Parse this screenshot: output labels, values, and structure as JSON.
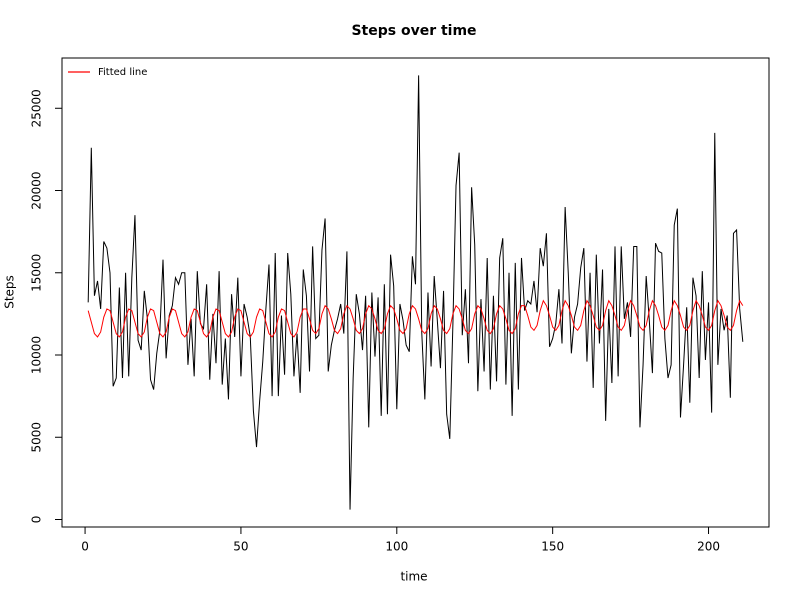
{
  "chart_data": {
    "type": "line",
    "title": "Steps over time",
    "x_label": "time",
    "y_label": "Steps",
    "x": [
      1,
      2,
      3,
      4,
      5,
      6,
      7,
      8,
      9,
      10,
      11,
      12,
      13,
      14,
      15,
      16,
      17,
      18,
      19,
      20,
      21,
      22,
      23,
      24,
      25,
      26,
      27,
      28,
      29,
      30,
      31,
      32,
      33,
      34,
      35,
      36,
      37,
      38,
      39,
      40,
      41,
      42,
      43,
      44,
      45,
      46,
      47,
      48,
      49,
      50,
      51,
      52,
      53,
      54,
      55,
      56,
      57,
      58,
      59,
      60,
      61,
      62,
      63,
      64,
      65,
      66,
      67,
      68,
      69,
      70,
      71,
      72,
      73,
      74,
      75,
      76,
      77,
      78,
      79,
      80,
      81,
      82,
      83,
      84,
      85,
      86,
      87,
      88,
      89,
      90,
      91,
      92,
      93,
      94,
      95,
      96,
      97,
      98,
      99,
      100,
      101,
      102,
      103,
      104,
      105,
      106,
      107,
      108,
      109,
      110,
      111,
      112,
      113,
      114,
      115,
      116,
      117,
      118,
      119,
      120,
      121,
      122,
      123,
      124,
      125,
      126,
      127,
      128,
      129,
      130,
      131,
      132,
      133,
      134,
      135,
      136,
      137,
      138,
      139,
      140,
      141,
      142,
      143,
      144,
      145,
      146,
      147,
      148,
      149,
      150,
      151,
      152,
      153,
      154,
      155,
      156,
      157,
      158,
      159,
      160,
      161,
      162,
      163,
      164,
      165,
      166,
      167,
      168,
      169,
      170,
      171,
      172,
      173,
      174,
      175,
      176,
      177,
      178,
      179,
      180,
      181,
      182,
      183,
      184,
      185,
      186,
      187,
      188,
      189,
      190,
      191,
      192,
      193,
      194,
      195,
      196,
      197,
      198,
      199,
      200,
      201,
      202,
      203,
      204,
      205,
      206,
      207,
      208,
      209,
      210,
      211
    ],
    "series": [
      {
        "color": "#000000",
        "values": [
          13200,
          22600,
          13600,
          14500,
          12800,
          16900,
          16500,
          15000,
          8100,
          8600,
          14100,
          8600,
          15000,
          8700,
          14700,
          18500,
          10900,
          10300,
          13900,
          12200,
          8500,
          7900,
          10100,
          11500,
          15800,
          9800,
          12400,
          13000,
          14700,
          14300,
          15000,
          15000,
          9400,
          12200,
          8700,
          15100,
          11900,
          11600,
          14300,
          8500,
          12500,
          9500,
          15100,
          8200,
          11000,
          7300,
          13700,
          11100,
          14700,
          8700,
          13100,
          12300,
          11100,
          6600,
          4400,
          7200,
          9600,
          12800,
          15500,
          7500,
          16200,
          7500,
          12400,
          8800,
          16200,
          13700,
          8700,
          11300,
          7700,
          15200,
          13600,
          9000,
          16600,
          11000,
          11200,
          16400,
          18300,
          9000,
          10600,
          11500,
          12200,
          13100,
          11300,
          16300,
          600,
          8600,
          13700,
          12500,
          10300,
          13600,
          5600,
          13800,
          9900,
          13500,
          6300,
          14300,
          6400,
          16100,
          14200,
          6700,
          13100,
          12100,
          10600,
          10200,
          16000,
          14300,
          27000,
          11400,
          7300,
          13800,
          9300,
          14800,
          12100,
          9200,
          13900,
          6400,
          4900,
          11900,
          20300,
          22300,
          11200,
          14000,
          9500,
          20200,
          16700,
          7800,
          13400,
          9000,
          15900,
          7900,
          13600,
          8400,
          15900,
          17100,
          8200,
          15000,
          6300,
          15600,
          7900,
          15900,
          12700,
          13300,
          13100,
          14500,
          12600,
          16500,
          15400,
          17400,
          10500,
          11000,
          11900,
          14000,
          10700,
          19000,
          15000,
          10100,
          12300,
          13100,
          15300,
          16500,
          9600,
          15000,
          8000,
          16100,
          10700,
          15200,
          6000,
          12800,
          8300,
          16600,
          8700,
          16600,
          12200,
          13200,
          11100,
          16600,
          16600,
          5600,
          9400,
          14800,
          12100,
          8900,
          16800,
          16300,
          16200,
          11000,
          8600,
          9400,
          17900,
          18900,
          6200,
          9400,
          12900,
          7100,
          14700,
          13600,
          8600,
          15100,
          9700,
          13200,
          6500,
          23500,
          9400,
          12800,
          11500,
          12400,
          7400,
          17400,
          17600,
          12800,
          10800
        ]
      },
      {
        "name": "Fitted line",
        "color": "#ff0000",
        "values": [
          12700,
          12000,
          11300,
          11100,
          11400,
          12300,
          12800,
          12700,
          12000,
          11300,
          11100,
          11400,
          12300,
          12800,
          12700,
          12000,
          11300,
          11100,
          11400,
          12300,
          12800,
          12700,
          12000,
          11300,
          11100,
          11400,
          12300,
          12800,
          12700,
          12000,
          11300,
          11100,
          11400,
          12300,
          12800,
          12700,
          12000,
          11300,
          11100,
          11400,
          12300,
          12800,
          12700,
          12000,
          11300,
          11100,
          11400,
          12300,
          12800,
          12700,
          12000,
          11300,
          11100,
          11400,
          12300,
          12800,
          12700,
          12000,
          11300,
          11100,
          11400,
          12300,
          12800,
          12700,
          12000,
          11300,
          11100,
          11400,
          12300,
          12800,
          12800,
          12200,
          11500,
          11300,
          11600,
          12500,
          13000,
          12800,
          12200,
          11500,
          11300,
          11600,
          12500,
          13000,
          12800,
          12200,
          11500,
          11300,
          11600,
          12500,
          13000,
          12800,
          12200,
          11500,
          11300,
          11600,
          12500,
          13000,
          12800,
          12200,
          11500,
          11300,
          11600,
          12500,
          13000,
          12800,
          12200,
          11500,
          11300,
          11600,
          12500,
          13000,
          12800,
          12200,
          11500,
          11300,
          11600,
          12500,
          13000,
          12800,
          12200,
          11500,
          11300,
          11600,
          12500,
          13000,
          12800,
          12200,
          11500,
          11300,
          11600,
          12500,
          13000,
          12800,
          12200,
          11500,
          11300,
          11600,
          12500,
          13000,
          13000,
          12400,
          11700,
          11500,
          11800,
          12700,
          13300,
          13000,
          12400,
          11700,
          11500,
          11800,
          12700,
          13300,
          13000,
          12400,
          11700,
          11500,
          11800,
          12700,
          13300,
          13000,
          12400,
          11700,
          11500,
          11800,
          12700,
          13300,
          13000,
          12400,
          11700,
          11500,
          11800,
          12700,
          13300,
          13000,
          12400,
          11700,
          11500,
          11800,
          12700,
          13300,
          13000,
          12400,
          11700,
          11500,
          11800,
          12700,
          13300,
          13000,
          12400,
          11700,
          11500,
          11800,
          12700,
          13300,
          13000,
          12400,
          11700,
          11500,
          11800,
          12700,
          13300,
          13000,
          12400,
          11700,
          11500,
          11800,
          12700,
          13300,
          13000
        ]
      }
    ],
    "xlim": [
      -7.4,
      219.4
    ],
    "ylim": [
      -456,
      28056
    ],
    "xticks": [
      0,
      50,
      100,
      150,
      200
    ],
    "yticks": [
      0,
      5000,
      10000,
      15000,
      20000,
      25000
    ],
    "legend": "topleft"
  }
}
